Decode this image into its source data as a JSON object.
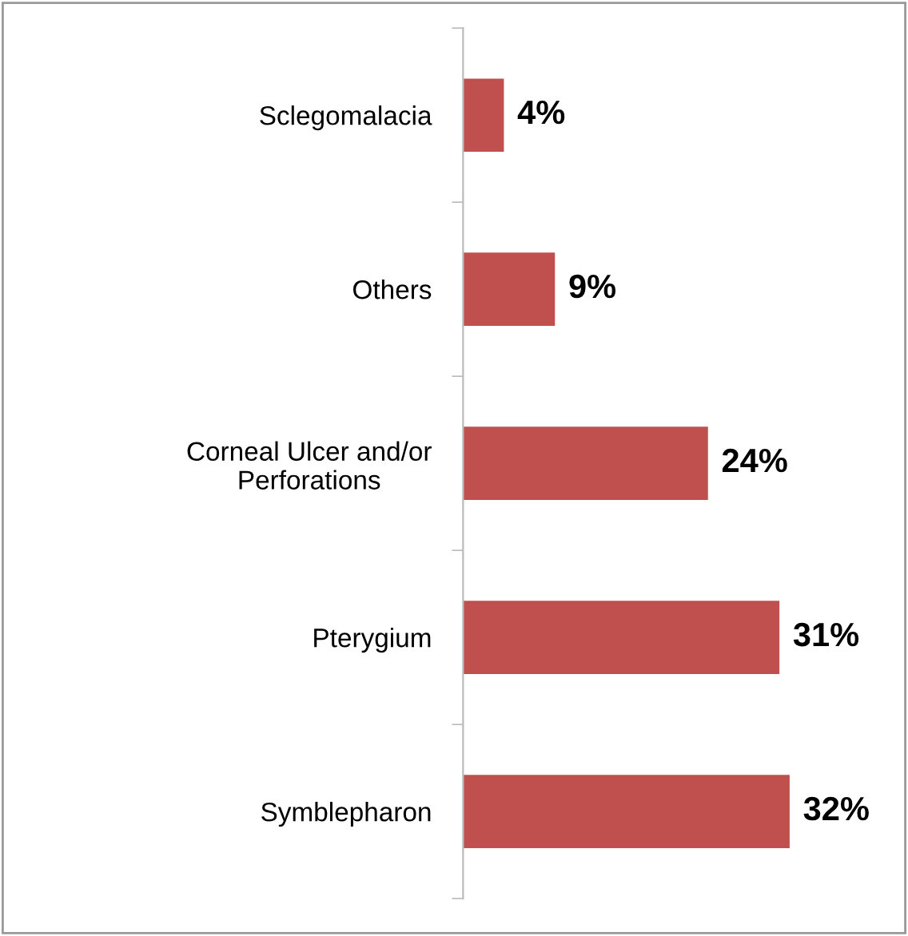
{
  "chart_data": {
    "type": "bar",
    "orientation": "horizontal",
    "categories": [
      "Sclegomalacia",
      "Others",
      "Corneal Ulcer and/or\nPerforations",
      "Pterygium",
      "Symblepharon"
    ],
    "values": [
      4,
      9,
      24,
      31,
      32
    ],
    "value_labels": [
      "4%",
      "9%",
      "24%",
      "31%",
      "32%"
    ],
    "color": "#c0504d",
    "grid": false,
    "legend": false
  }
}
